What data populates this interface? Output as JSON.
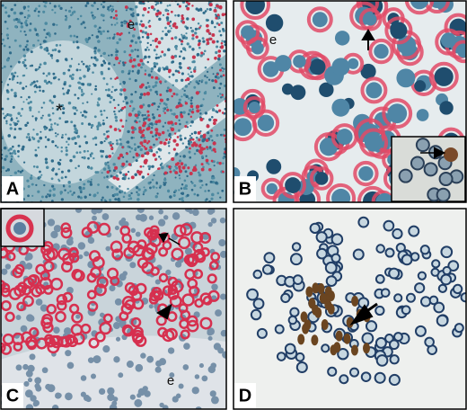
{
  "panels": [
    {
      "label": "A",
      "annotations": [
        "e",
        "*"
      ]
    },
    {
      "label": "B",
      "annotations": [
        "e"
      ]
    },
    {
      "label": "C",
      "annotations": [
        "e"
      ]
    },
    {
      "label": "D"
    }
  ]
}
